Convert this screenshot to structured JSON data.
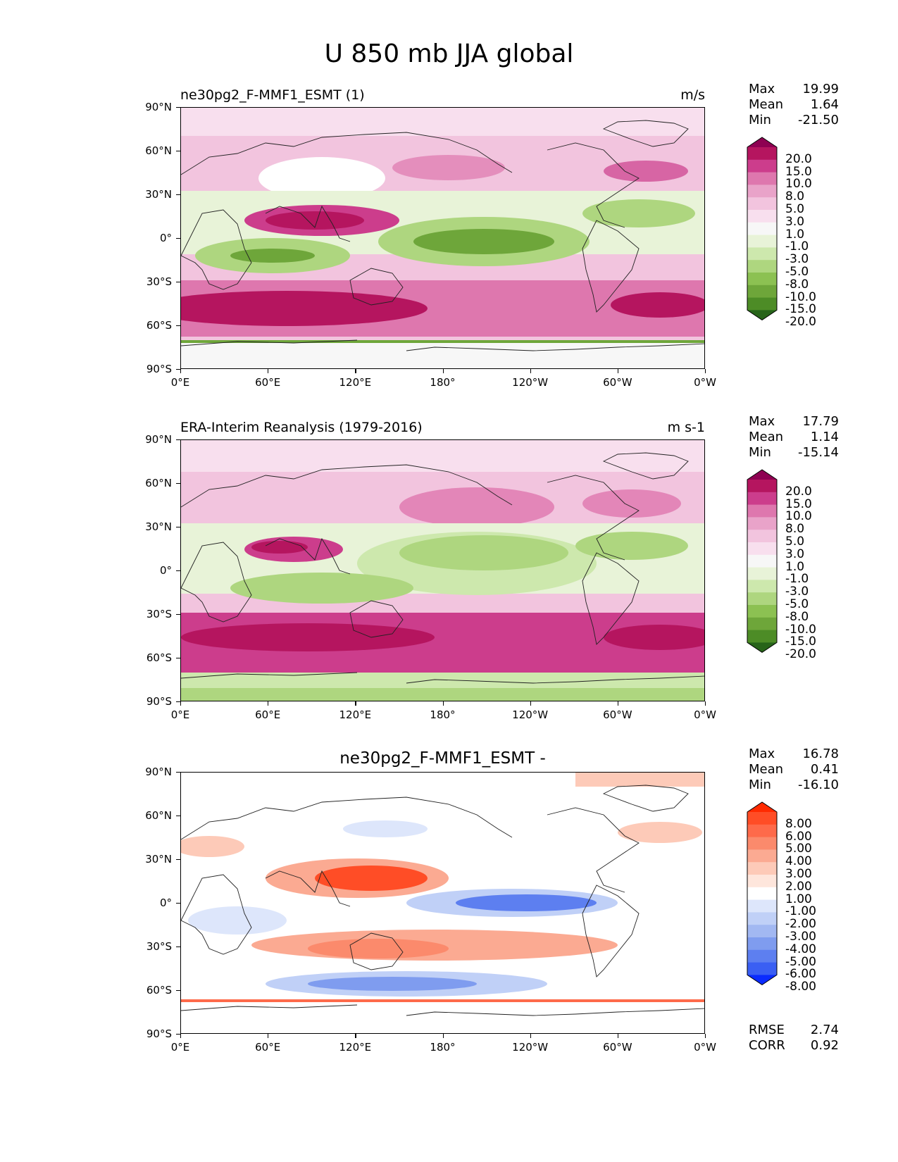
{
  "title": "U 850 mb JJA global",
  "lat_ticks": [
    "90°N",
    "60°N",
    "30°N",
    "0°",
    "30°S",
    "60°S",
    "90°S"
  ],
  "lon_ticks": [
    "0°E",
    "60°E",
    "120°E",
    "180°",
    "120°W",
    "60°W",
    "0°W"
  ],
  "stat_labels": {
    "max": "Max",
    "mean": "Mean",
    "min": "Min",
    "rmse": "RMSE",
    "corr": "CORR"
  },
  "panels": [
    {
      "title_left": "ne30pg2_F-MMF1_ESMT (1)",
      "title_right": "m/s",
      "stats": {
        "max": "19.99",
        "mean": "1.64",
        "min": "-21.50"
      },
      "colorbar": {
        "labels": [
          "20.0",
          "15.0",
          "10.0",
          "8.0",
          "5.0",
          "3.0",
          "1.0",
          "-1.0",
          "-3.0",
          "-5.0",
          "-8.0",
          "-10.0",
          "-15.0",
          "-20.0"
        ],
        "colors": [
          "#8e0152",
          "#b5155f",
          "#cc3d8c",
          "#de77ae",
          "#e9a3c9",
          "#f2c4de",
          "#f8dfee",
          "#f7f7f7",
          "#e8f3d8",
          "#cde8ad",
          "#aed67f",
          "#8cc152",
          "#6ea63a",
          "#4d8c26",
          "#276419"
        ]
      }
    },
    {
      "title_left": "ERA-Interim Reanalysis (1979-2016)",
      "title_right": "m s-1",
      "stats": {
        "max": "17.79",
        "mean": "1.14",
        "min": "-15.14"
      },
      "colorbar": {
        "labels": [
          "20.0",
          "15.0",
          "10.0",
          "8.0",
          "5.0",
          "3.0",
          "1.0",
          "-1.0",
          "-3.0",
          "-5.0",
          "-8.0",
          "-10.0",
          "-15.0",
          "-20.0"
        ],
        "colors": [
          "#8e0152",
          "#b5155f",
          "#cc3d8c",
          "#de77ae",
          "#e9a3c9",
          "#f2c4de",
          "#f8dfee",
          "#f7f7f7",
          "#e8f3d8",
          "#cde8ad",
          "#aed67f",
          "#8cc152",
          "#6ea63a",
          "#4d8c26",
          "#276419"
        ]
      }
    },
    {
      "title_center": "ne30pg2_F-MMF1_ESMT -",
      "stats": {
        "max": "16.78",
        "mean": "0.41",
        "min": "-16.10",
        "rmse": "2.74",
        "corr": "0.92"
      },
      "colorbar": {
        "labels": [
          "8.00",
          "6.00",
          "5.00",
          "4.00",
          "3.00",
          "2.00",
          "1.00",
          "-1.00",
          "-2.00",
          "-3.00",
          "-4.00",
          "-5.00",
          "-6.00",
          "-8.00"
        ],
        "colors": [
          "#ff2a00",
          "#ff4d26",
          "#fe6a4a",
          "#fb8a6c",
          "#fbaa92",
          "#fdcab8",
          "#fee6dc",
          "#ffffff",
          "#dde6fb",
          "#c0d0f7",
          "#a2b8f2",
          "#7f9cef",
          "#5d7ff0",
          "#3a5ff3",
          "#0a2bff"
        ]
      }
    }
  ]
}
